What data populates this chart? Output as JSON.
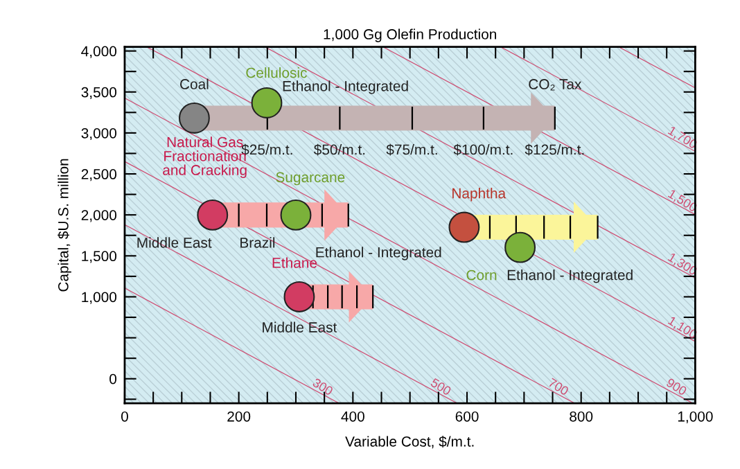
{
  "chart_data": {
    "type": "scatter",
    "title": "1,000 Gg Olefin Production",
    "xlabel": "Variable Cost, $/m.t.",
    "ylabel": "Capital, $U.S. million",
    "xlim": [
      0,
      1000
    ],
    "ylim": [
      -300,
      4050
    ],
    "xticks": [
      0,
      200,
      400,
      600,
      800,
      {
        "value": 1000,
        "label": "1,000"
      }
    ],
    "yticks": [
      0,
      {
        "value": 1000,
        "label": "1,000"
      },
      {
        "value": 1500,
        "label": "1,500"
      },
      {
        "value": 2000,
        "label": "2,000"
      },
      {
        "value": 2500,
        "label": "2,500"
      },
      {
        "value": 3000,
        "label": "3,000"
      },
      {
        "value": 3500,
        "label": "3,500"
      },
      {
        "value": 4000,
        "label": "4,000"
      }
    ],
    "grid": false,
    "legend": false,
    "series": [
      {
        "type": "line",
        "name": "300",
        "color": "#cf4d72",
        "x": [
          0,
          376
        ],
        "values": [
          1107,
          -300
        ]
      },
      {
        "type": "line",
        "name": "500",
        "color": "#cf4d72",
        "x": [
          0,
          583
        ],
        "values": [
          1881,
          -300
        ]
      },
      {
        "type": "line",
        "name": "700",
        "color": "#cf4d72",
        "x": [
          0,
          789
        ],
        "values": [
          2651,
          -300
        ]
      },
      {
        "type": "line",
        "name": "900",
        "color": "#cf4d72",
        "x": [
          0,
          996
        ],
        "values": [
          3426,
          -300
        ]
      },
      {
        "type": "line",
        "name": "1,100",
        "color": "#cf4d72",
        "x": [
          39,
          1000
        ],
        "values": [
          4050,
          456
        ]
      },
      {
        "type": "line",
        "name": "1,300",
        "color": "#cf4d72",
        "x": [
          246,
          1000
        ],
        "values": [
          4050,
          1230
        ]
      },
      {
        "type": "line",
        "name": "1,500",
        "color": "#cf4d72",
        "x": [
          453,
          1000
        ],
        "values": [
          4050,
          2004
        ]
      },
      {
        "type": "line",
        "name": "1,700",
        "color": "#cf4d72",
        "x": [
          659,
          1000
        ],
        "values": [
          4050,
          2775
        ]
      },
      {
        "type": "line",
        "color": "#cf4d72",
        "x": [
          866,
          1000
        ],
        "values": [
          4050,
          3549
        ]
      },
      {
        "type": "line",
        "color": "#c4b3b3",
        "x": [
          122,
          250,
          377,
          504,
          629,
          754
        ],
        "values": [
          3181,
          3181,
          3181,
          3181,
          3181,
          3181
        ],
        "errors": [
          null,
          130,
          130,
          130,
          130,
          130
        ]
      },
      {
        "type": "line",
        "color": "#f7a8a8",
        "x": [
          154,
          200,
          249,
          298,
          346,
          392
        ],
        "values": [
          1998,
          1998,
          1998,
          1998,
          1998,
          1998
        ],
        "errors": [
          null,
          130,
          130,
          null,
          130,
          130
        ]
      },
      {
        "type": "line",
        "color": "#fbf59a",
        "x": [
          595,
          640,
          686,
          735,
          781,
          829
        ],
        "values": [
          1849,
          1849,
          1849,
          1849,
          1849,
          1849
        ],
        "errors": [
          null,
          130,
          130,
          130,
          130,
          130
        ]
      },
      {
        "type": "line",
        "color": "#f7a8a8",
        "x": [
          306,
          330,
          356,
          381,
          407,
          435
        ],
        "values": [
          1000,
          1000,
          1000,
          1000,
          1000,
          1000
        ],
        "errors": [
          null,
          130,
          130,
          130,
          130,
          130
        ]
      },
      {
        "marker": "circle",
        "x": [
          122,
          249,
          154,
          300,
          595,
          693,
          306
        ],
        "values": [
          3181,
          3367,
          1998,
          1998,
          1849,
          1603,
          1000
        ],
        "colors": [
          "#858585",
          "#7bb13a",
          "#d23c62",
          "#7bb13a",
          "#c4503f",
          "#7bb13a",
          "#d23c62"
        ]
      }
    ],
    "annotations": [
      {
        "text": "Coal",
        "x": 122,
        "y": 3181
      },
      {
        "text": "Cellulosic",
        "x": 249,
        "y": 3367
      },
      {
        "text": "Ethanol - Integrated",
        "x": 377,
        "y": 3181
      },
      {
        "text": "CO₂ Tax",
        "x": 754,
        "y": 3181
      },
      {
        "text": "$25/m.t.",
        "x": 250,
        "y": 3181
      },
      {
        "text": "$50/m.t.",
        "x": 377,
        "y": 3181
      },
      {
        "text": "$75/m.t.",
        "x": 504,
        "y": 3181
      },
      {
        "text": "$100/m.t.",
        "x": 629,
        "y": 3181
      },
      {
        "text": "$125/m.t.",
        "x": 754,
        "y": 3181
      },
      {
        "text": "Natural Gas\nFractionation\nand Cracking",
        "x": 154,
        "y": 1998
      },
      {
        "text": "Sugarcane",
        "x": 300,
        "y": 1998
      },
      {
        "text": "Middle East",
        "x": 154,
        "y": 1998
      },
      {
        "text": "Brazil",
        "x": 300,
        "y": 1998
      },
      {
        "text": "Ethanol - Integrated",
        "x": 300,
        "y": 1998
      },
      {
        "text": "Naphtha",
        "x": 595,
        "y": 1849
      },
      {
        "text": "Corn",
        "x": 693,
        "y": 1603
      },
      {
        "text": "Ethanol - Integrated",
        "x": 693,
        "y": 1603
      },
      {
        "text": "Ethane",
        "x": 306,
        "y": 1000
      },
      {
        "text": "Middle East",
        "x": 306,
        "y": 1000
      }
    ]
  }
}
